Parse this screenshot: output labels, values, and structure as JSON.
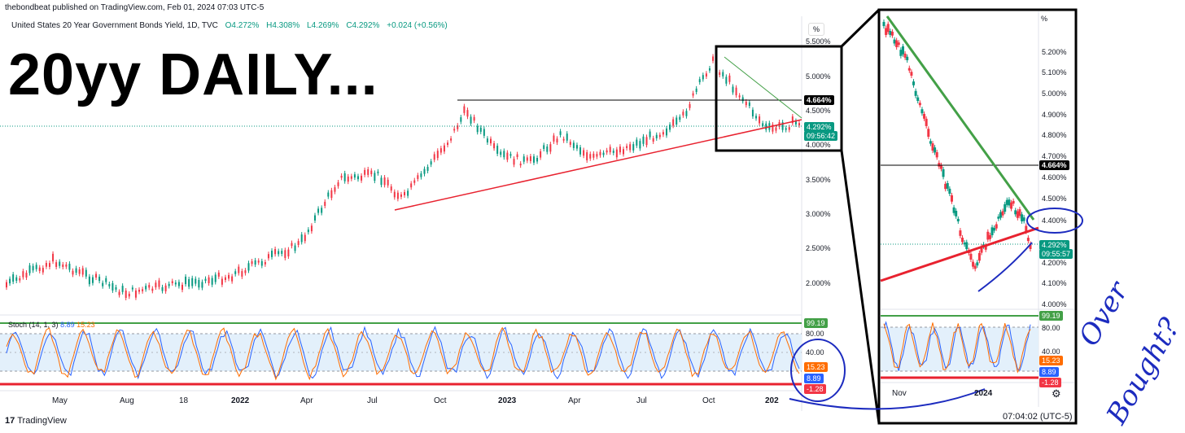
{
  "header": {
    "publisher_line": "thebondbeat published on TradingView.com, Feb 01, 2024 07:03 UTC-5",
    "symbol": "United States 20 Year Government Bonds Yield, 1D, TVC",
    "open": "O4.272%",
    "high": "H4.308%",
    "low": "L4.269%",
    "close": "C4.292%",
    "change": "+0.024 (+0.56%)"
  },
  "annotation": {
    "title": "20yy DAILY...",
    "handwritten_1": "Over",
    "handwritten_2": "Bought?"
  },
  "main_chart": {
    "percent_button": "%",
    "y_axis_labels": [
      "5.500%",
      "5.000%",
      "4.500%",
      "4.000%",
      "3.500%",
      "3.000%",
      "2.500%",
      "2.000%"
    ],
    "level_tag": "4.664%",
    "last_price_tag": "4.292%",
    "countdown": "09:56:42",
    "time_labels": [
      "May",
      "Aug",
      "18",
      "2022",
      "Apr",
      "Jul",
      "Oct",
      "2023",
      "Apr",
      "Jul",
      "Oct",
      "202"
    ],
    "colors": {
      "up": "#089981",
      "down": "#f23645",
      "trend_support": "#e8222f",
      "trend_resistance": "#43a047"
    }
  },
  "stochastic": {
    "legend": "Stoch (14, 1, 3)",
    "k_value": "8.89",
    "d_value": "15.23",
    "axis_labels": [
      "80.00",
      "40.00"
    ],
    "upper_tag": "99.19",
    "d_tag": "15.23",
    "k_tag": "8.89",
    "lower_tag": "-1.28"
  },
  "inset_chart": {
    "percent_label": "%",
    "y_axis_labels": [
      "5.200%",
      "5.100%",
      "5.000%",
      "4.900%",
      "4.800%",
      "4.700%",
      "4.600%",
      "4.500%",
      "4.400%",
      "4.200%",
      "4.100%",
      "4.000%"
    ],
    "level_tag": "4.664%",
    "last_price_tag": "4.292%",
    "countdown": "09:55:57",
    "time_labels": [
      "Nov",
      "2024"
    ],
    "stoch_axis_labels": [
      "80.00",
      "40.00"
    ],
    "stoch_upper_tag": "99.19",
    "stoch_d_tag": "15.23",
    "stoch_k_tag": "8.89",
    "stoch_lower_tag": "-1.28",
    "clock": "07:04:02 (UTC-5)"
  },
  "footer": {
    "brand": "TradingView",
    "brand_mark": "17"
  }
}
